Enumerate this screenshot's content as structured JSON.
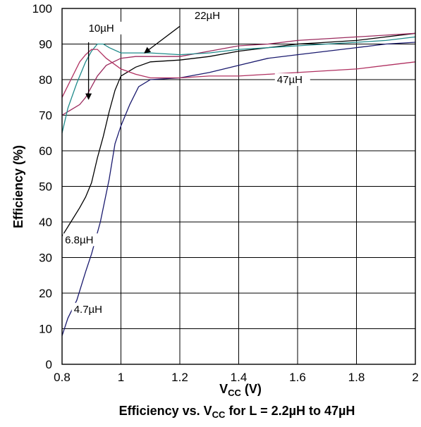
{
  "chart_data": {
    "type": "line",
    "xlabel": {
      "main": "V",
      "sub": "CC",
      "rest": " (V)"
    },
    "ylabel": "Efficiency (%)",
    "caption": {
      "a": "Efficiency vs. V",
      "sub": "CC",
      "b": " for L = 2.2µH to 47µH"
    },
    "xlim": [
      0.8,
      2.0
    ],
    "ylim": [
      0,
      100
    ],
    "x_ticks": [
      "0.8",
      "1",
      "1.2",
      "1.4",
      "1.6",
      "1.8",
      "2"
    ],
    "x_tick_values": [
      0.8,
      1.0,
      1.2,
      1.4,
      1.6,
      1.8,
      2.0
    ],
    "y_ticks": [
      "0",
      "10",
      "20",
      "30",
      "40",
      "50",
      "60",
      "70",
      "80",
      "90",
      "100"
    ],
    "y_tick_values": [
      0,
      10,
      20,
      30,
      40,
      50,
      60,
      70,
      80,
      90,
      100
    ],
    "grid": true,
    "series": [
      {
        "color": "#1a1a6e",
        "points": [
          [
            0.8,
            8
          ],
          [
            0.82,
            13
          ],
          [
            0.85,
            18
          ],
          [
            0.88,
            26
          ],
          [
            0.9,
            31
          ],
          [
            0.93,
            40
          ],
          [
            0.96,
            52
          ],
          [
            0.98,
            62
          ],
          [
            1.0,
            67
          ],
          [
            1.03,
            73
          ],
          [
            1.06,
            78
          ],
          [
            1.1,
            80
          ],
          [
            1.2,
            80.5
          ],
          [
            1.3,
            82
          ],
          [
            1.4,
            84
          ],
          [
            1.5,
            86
          ],
          [
            1.6,
            87
          ],
          [
            1.7,
            88
          ],
          [
            1.8,
            89
          ],
          [
            1.9,
            90
          ],
          [
            2.0,
            90.5
          ]
        ]
      },
      {
        "color": "#000000",
        "points": [
          [
            0.8,
            36
          ],
          [
            0.83,
            40
          ],
          [
            0.86,
            44
          ],
          [
            0.88,
            47
          ],
          [
            0.9,
            51
          ],
          [
            0.92,
            58
          ],
          [
            0.94,
            64
          ],
          [
            0.96,
            71
          ],
          [
            0.98,
            77
          ],
          [
            1.0,
            81
          ],
          [
            1.05,
            83.5
          ],
          [
            1.1,
            85
          ],
          [
            1.2,
            85.5
          ],
          [
            1.3,
            86.5
          ],
          [
            1.4,
            88
          ],
          [
            1.5,
            89
          ],
          [
            1.6,
            90
          ],
          [
            1.7,
            90.5
          ],
          [
            1.8,
            91
          ],
          [
            1.9,
            92
          ],
          [
            2.0,
            93
          ]
        ]
      },
      {
        "color": "#9b2b5e",
        "points": [
          [
            0.8,
            70
          ],
          [
            0.83,
            71.5
          ],
          [
            0.86,
            73
          ],
          [
            0.88,
            75
          ],
          [
            0.9,
            78
          ],
          [
            0.92,
            81
          ],
          [
            0.95,
            84
          ],
          [
            1.0,
            86
          ],
          [
            1.05,
            86.5
          ],
          [
            1.1,
            86.5
          ],
          [
            1.2,
            86.5
          ],
          [
            1.3,
            88
          ],
          [
            1.4,
            89.5
          ],
          [
            1.5,
            90
          ],
          [
            1.6,
            91
          ],
          [
            1.7,
            91.5
          ],
          [
            1.8,
            92
          ],
          [
            1.9,
            92.5
          ],
          [
            2.0,
            93
          ]
        ]
      },
      {
        "color": "#1f8a8a",
        "points": [
          [
            0.8,
            65
          ],
          [
            0.82,
            72
          ],
          [
            0.85,
            79
          ],
          [
            0.88,
            85
          ],
          [
            0.9,
            88
          ],
          [
            0.92,
            90
          ],
          [
            0.94,
            90
          ],
          [
            0.96,
            89
          ],
          [
            1.0,
            87.5
          ],
          [
            1.05,
            87.5
          ],
          [
            1.1,
            87.5
          ],
          [
            1.2,
            87
          ],
          [
            1.3,
            87.5
          ],
          [
            1.4,
            88.5
          ],
          [
            1.5,
            89
          ],
          [
            1.6,
            89.5
          ],
          [
            1.7,
            90
          ],
          [
            1.8,
            90.5
          ],
          [
            1.9,
            91
          ],
          [
            2.0,
            92
          ]
        ]
      },
      {
        "color": "#b03060",
        "points": [
          [
            0.8,
            75
          ],
          [
            0.83,
            80
          ],
          [
            0.86,
            85
          ],
          [
            0.88,
            87
          ],
          [
            0.9,
            88.5
          ],
          [
            0.92,
            88.5
          ],
          [
            0.95,
            86
          ],
          [
            1.0,
            83
          ],
          [
            1.05,
            81.5
          ],
          [
            1.1,
            80.5
          ],
          [
            1.2,
            80.5
          ],
          [
            1.3,
            81
          ],
          [
            1.4,
            81
          ],
          [
            1.5,
            81.5
          ],
          [
            1.6,
            82
          ],
          [
            1.7,
            82.5
          ],
          [
            1.8,
            83
          ],
          [
            1.9,
            84
          ],
          [
            2.0,
            85
          ]
        ]
      }
    ],
    "annotations": [
      {
        "text": "10µH",
        "x": 0.89,
        "y": 93.5,
        "arrow_from": [
          0.89,
          90.5
        ],
        "arrow_to": [
          0.89,
          74.5
        ]
      },
      {
        "text": "22µH",
        "x": 1.25,
        "y": 97,
        "arrow_from": [
          1.2,
          95
        ],
        "arrow_to": [
          1.08,
          87.5
        ]
      },
      {
        "text": "47µH",
        "x": 1.53,
        "y": 79
      },
      {
        "text": "6.8µH",
        "x": 0.81,
        "y": 34
      },
      {
        "text": "4.7µH",
        "x": 0.84,
        "y": 14.5
      }
    ]
  }
}
